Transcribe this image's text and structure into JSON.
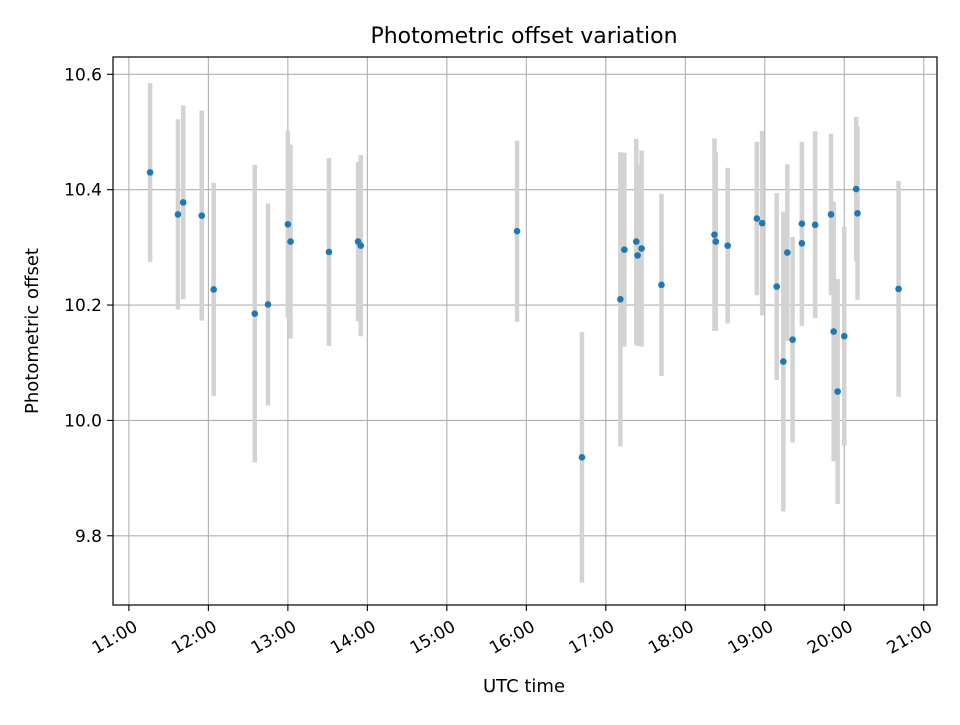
{
  "chart_data": {
    "type": "scatter",
    "title": "Photometric offset variation",
    "xlabel": "UTC time",
    "ylabel": "Photometric offset",
    "xlim": [
      "10:48",
      "21:10"
    ],
    "ylim": [
      9.68,
      10.63
    ],
    "x_ticks": [
      "11:00",
      "12:00",
      "13:00",
      "14:00",
      "15:00",
      "16:00",
      "17:00",
      "18:00",
      "19:00",
      "20:00",
      "21:00"
    ],
    "y_ticks": [
      "9.8",
      "10.0",
      "10.2",
      "10.4",
      "10.6"
    ],
    "grid": true,
    "marker_color": "#1f77b4",
    "errorbar_color": "#d3d3d3",
    "points": [
      {
        "t": "11:16",
        "y": 10.43,
        "err": 0.155
      },
      {
        "t": "11:37",
        "y": 10.357,
        "err": 0.165
      },
      {
        "t": "11:41",
        "y": 10.378,
        "err": 0.168
      },
      {
        "t": "11:55",
        "y": 10.355,
        "err": 0.182
      },
      {
        "t": "12:04",
        "y": 10.227,
        "err": 0.185
      },
      {
        "t": "12:35",
        "y": 10.185,
        "err": 0.258
      },
      {
        "t": "12:45",
        "y": 10.201,
        "err": 0.175
      },
      {
        "t": "13:00",
        "y": 10.34,
        "err": 0.162
      },
      {
        "t": "13:02",
        "y": 10.31,
        "err": 0.168
      },
      {
        "t": "13:31",
        "y": 10.292,
        "err": 0.163
      },
      {
        "t": "13:53",
        "y": 10.31,
        "err": 0.138
      },
      {
        "t": "13:55",
        "y": 10.303,
        "err": 0.157
      },
      {
        "t": "15:53",
        "y": 10.328,
        "err": 0.157
      },
      {
        "t": "16:42",
        "y": 9.936,
        "err": 0.217
      },
      {
        "t": "17:11",
        "y": 10.21,
        "err": 0.255
      },
      {
        "t": "17:14",
        "y": 10.296,
        "err": 0.168
      },
      {
        "t": "17:23",
        "y": 10.31,
        "err": 0.178
      },
      {
        "t": "17:24",
        "y": 10.286,
        "err": 0.157
      },
      {
        "t": "17:27",
        "y": 10.298,
        "err": 0.17
      },
      {
        "t": "17:42",
        "y": 10.235,
        "err": 0.158
      },
      {
        "t": "18:22",
        "y": 10.322,
        "err": 0.167
      },
      {
        "t": "18:23",
        "y": 10.31,
        "err": 0.155
      },
      {
        "t": "18:32",
        "y": 10.303,
        "err": 0.135
      },
      {
        "t": "18:54",
        "y": 10.35,
        "err": 0.133
      },
      {
        "t": "18:58",
        "y": 10.342,
        "err": 0.16
      },
      {
        "t": "19:09",
        "y": 10.232,
        "err": 0.162
      },
      {
        "t": "19:14",
        "y": 10.102,
        "err": 0.26
      },
      {
        "t": "19:17",
        "y": 10.291,
        "err": 0.153
      },
      {
        "t": "19:21",
        "y": 10.14,
        "err": 0.178
      },
      {
        "t": "19:28",
        "y": 10.307,
        "err": 0.143
      },
      {
        "t": "19:28",
        "y": 10.341,
        "err": 0.142
      },
      {
        "t": "19:38",
        "y": 10.339,
        "err": 0.162
      },
      {
        "t": "19:50",
        "y": 10.357,
        "err": 0.14
      },
      {
        "t": "19:52",
        "y": 10.154,
        "err": 0.225
      },
      {
        "t": "19:55",
        "y": 10.05,
        "err": 0.195
      },
      {
        "t": "20:00",
        "y": 10.146,
        "err": 0.19
      },
      {
        "t": "20:09",
        "y": 10.401,
        "err": 0.125
      },
      {
        "t": "20:10",
        "y": 10.359,
        "err": 0.15
      },
      {
        "t": "20:41",
        "y": 10.228,
        "err": 0.187
      }
    ]
  }
}
